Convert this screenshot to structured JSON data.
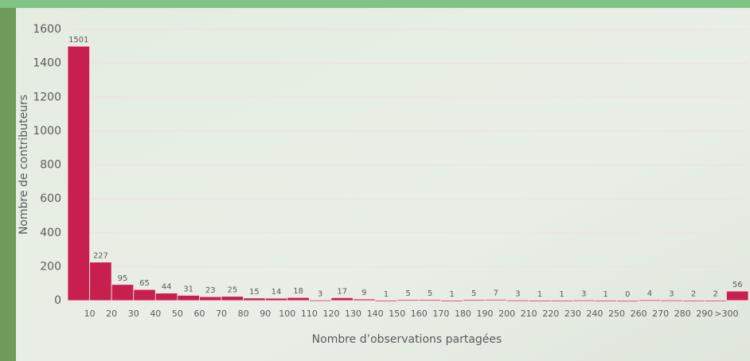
{
  "chart_data": {
    "type": "histogram",
    "x_label": "Nombre d’observations partagées",
    "y_label": "Nombre de contributeurs",
    "bins": [
      null,
      10,
      20,
      30,
      40,
      50,
      60,
      70,
      80,
      90,
      100,
      110,
      120,
      130,
      140,
      150,
      160,
      170,
      180,
      190,
      200,
      210,
      220,
      230,
      240,
      250,
      260,
      270,
      280,
      290,
      {
        "value": 300,
        "label": ">300"
      },
      null
    ],
    "values": [
      1501,
      227,
      95,
      65,
      44,
      31,
      23,
      25,
      15,
      14,
      18,
      3,
      17,
      9,
      1,
      5,
      5,
      1,
      5,
      7,
      3,
      1,
      1,
      3,
      1,
      0,
      4,
      3,
      2,
      2,
      56
    ],
    "color": "#c8204e",
    "ylim": [
      0,
      1600
    ],
    "yticks": [
      0,
      200,
      400,
      600,
      800,
      1000,
      1200,
      1400,
      1600
    ],
    "grid": true
  }
}
